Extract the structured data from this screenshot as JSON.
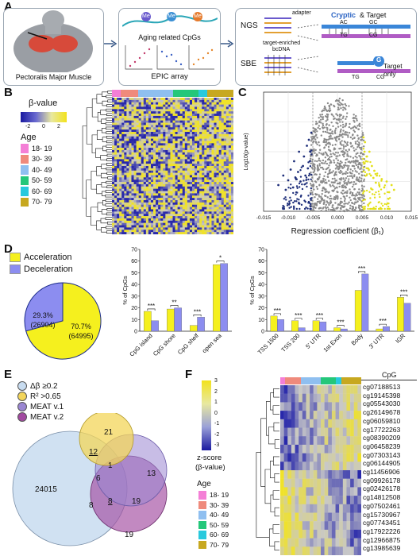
{
  "panels": {
    "A": "A",
    "B": "B",
    "C": "C",
    "D": "D",
    "E": "E",
    "F": "F"
  },
  "panelA": {
    "muscle_label": "Pectoralis Major Muscle",
    "cpg_title": "Aging related CpGs",
    "array_label": "EPIC array",
    "me": "Me",
    "ngs": "NGS",
    "sbe": "SBE",
    "adapter": "adapter",
    "enriched": "target-enriched",
    "bcdna": "bcDNA",
    "cryptic": "Cryptic",
    "and_target": " & Target",
    "target_only": "Target only",
    "seq_ac": "AC",
    "seq_gc": "GC",
    "seq_tg": "TG",
    "seq_cg": "CG",
    "g": "G"
  },
  "panelB": {
    "legend_title": "β-value",
    "ticks": [
      "-2",
      "0",
      "2"
    ],
    "age_title": "Age",
    "age_groups": [
      {
        "label": "18- 19",
        "color": "#f47fd6"
      },
      {
        "label": "30- 39",
        "color": "#ef8a7c"
      },
      {
        "label": "40- 49",
        "color": "#8fbff0"
      },
      {
        "label": "50- 59",
        "color": "#24c77a"
      },
      {
        "label": "60- 69",
        "color": "#29c9dd"
      },
      {
        "label": "70- 79",
        "color": "#c7a820"
      }
    ]
  },
  "chart_data": [
    {
      "type": "scatter",
      "panel": "C",
      "xlabel": "Regression coefficient (β₁)",
      "ylabel": "Log10(p-value)",
      "xlim": [
        -0.015,
        0.015
      ],
      "x_ticks": [
        "-0.015",
        "-0.010",
        "-0.005",
        "0.000",
        "0.005",
        "0.010",
        "0.015"
      ],
      "series": [
        {
          "color": "#1f2f7a",
          "x": [
            -0.012,
            -0.011,
            -0.0105,
            -0.01,
            -0.0095,
            -0.009,
            -0.0088,
            -0.0085,
            -0.008,
            -0.0078,
            -0.0075,
            -0.007,
            -0.0068,
            -0.0065,
            -0.0062,
            -0.006,
            -0.0058,
            -0.0056,
            -0.0055,
            -0.0053
          ],
          "y": [
            0.22,
            0.3,
            0.18,
            0.26,
            0.35,
            0.2,
            0.42,
            0.28,
            0.33,
            0.5,
            0.25,
            0.38,
            0.46,
            0.3,
            0.55,
            0.36,
            0.6,
            0.42,
            0.5,
            0.66
          ]
        },
        {
          "color": "#e3e01a",
          "x": [
            0.0053,
            0.0055,
            0.0056,
            0.0058,
            0.006,
            0.0062,
            0.0065,
            0.0068,
            0.007,
            0.0073,
            0.0075,
            0.0078,
            0.008,
            0.0085,
            0.009,
            0.0095,
            0.01,
            0.0105,
            0.011,
            0.0115
          ],
          "y": [
            0.62,
            0.5,
            0.58,
            0.42,
            0.46,
            0.36,
            0.5,
            0.3,
            0.38,
            0.28,
            0.34,
            0.24,
            0.3,
            0.22,
            0.27,
            0.2,
            0.25,
            0.16,
            0.22,
            0.18
          ]
        }
      ]
    },
    {
      "type": "pie",
      "panel": "D",
      "series": [
        {
          "name": "Acceleration",
          "value": 70.7,
          "count": "(64995)",
          "label": "70.7%",
          "color": "#f5f01e"
        },
        {
          "name": "Deceleration",
          "value": 29.3,
          "count": "(26904)",
          "label": "29.3%",
          "color": "#8c8df0"
        }
      ]
    },
    {
      "type": "bar",
      "panel": "D-mid",
      "ylabel": "% of CpGs",
      "ylim": [
        0,
        70
      ],
      "y_ticks": [
        "0",
        "10",
        "20",
        "30",
        "40",
        "50",
        "60",
        "70"
      ],
      "categories": [
        "CpG island",
        "CpG shore",
        "CpG shelf",
        "open sea"
      ],
      "series": [
        {
          "name": "Acceleration",
          "color": "#f5f01e",
          "values": [
            17,
            19,
            5,
            57
          ]
        },
        {
          "name": "Deceleration",
          "color": "#8c8df0",
          "values": [
            9,
            20,
            12,
            58
          ]
        }
      ],
      "significance": [
        "***",
        "**",
        "***",
        "*"
      ]
    },
    {
      "type": "bar",
      "panel": "D-right",
      "ylabel": "% of CpGs",
      "ylim": [
        0,
        70
      ],
      "y_ticks": [
        "0",
        "10",
        "20",
        "30",
        "40",
        "50",
        "60",
        "70"
      ],
      "categories": [
        "TSS 1500",
        "TSS 200",
        "5' UTR",
        "1st Exon",
        "Body",
        "3' UTR",
        "IGR"
      ],
      "series": [
        {
          "name": "Acceleration",
          "color": "#f5f01e",
          "values": [
            13,
            9,
            9,
            3,
            35,
            2,
            29
          ]
        },
        {
          "name": "Deceleration",
          "color": "#8c8df0",
          "values": [
            10,
            3,
            8,
            2,
            49,
            4,
            24
          ]
        }
      ],
      "significance": [
        "***",
        "***",
        "***",
        "***",
        "***",
        "***",
        "***"
      ]
    }
  ],
  "panelE": {
    "legend": [
      {
        "label": "Δβ ≥0.2",
        "color": "#c8dcf0"
      },
      {
        "label": "R² >0.65",
        "color": "#f3d55a"
      },
      {
        "label": "MEAT v.1",
        "color": "#9a86d2"
      },
      {
        "label": "MEAT v.2",
        "color": "#a24aa0"
      }
    ],
    "numbers": {
      "n24015": "24015",
      "n21": "21",
      "n12": "12",
      "n1": "1",
      "n6": "6",
      "n13": "13",
      "n8a": "8",
      "n8b": "8",
      "n19a": "19",
      "n19b": "19"
    }
  },
  "panelF": {
    "scale_ticks": [
      "3",
      "2",
      "1",
      "0",
      "-1",
      "-2",
      "-3"
    ],
    "zlabel1": "z-score",
    "zlabel2": "(β-value)",
    "age_title": "Age",
    "cpg_header": "CpG",
    "cpgs": [
      "cg07188513",
      "cg19145398",
      "cg05543030",
      "cg26149678",
      "cg06059810",
      "cg17722263",
      "cg08390209",
      "cg06458239",
      "cg07303143",
      "cg06144905",
      "cg11456906",
      "cg09926178",
      "cg02426178",
      "cg14812508",
      "cg07502461",
      "cg15730967",
      "cg07743451",
      "cg17922226",
      "cg12966875",
      "cg13985639"
    ]
  }
}
